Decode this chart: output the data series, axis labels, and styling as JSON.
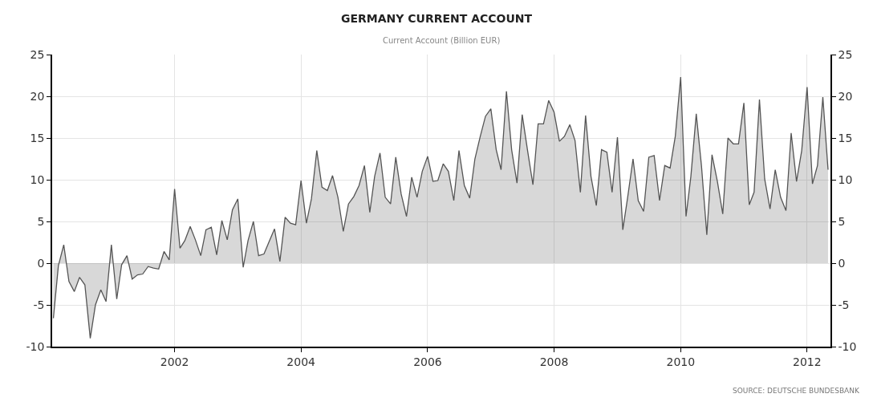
{
  "chart_data": {
    "type": "area",
    "title": "GERMANY CURRENT ACCOUNT",
    "subtitle": "Current Account (Billion EUR)",
    "annotations": [
      "SOURCE: DEUTSCHE BUNDESBANK"
    ],
    "x": [
      "2000-02",
      "2000-03",
      "2000-04",
      "2000-05",
      "2000-06",
      "2000-07",
      "2000-08",
      "2000-09",
      "2000-10",
      "2000-11",
      "2000-12",
      "2001-01",
      "2001-02",
      "2001-03",
      "2001-04",
      "2001-05",
      "2001-06",
      "2001-07",
      "2001-08",
      "2001-09",
      "2001-10",
      "2001-11",
      "2001-12",
      "2002-01",
      "2002-02",
      "2002-03",
      "2002-04",
      "2002-05",
      "2002-06",
      "2002-07",
      "2002-08",
      "2002-09",
      "2002-10",
      "2002-11",
      "2002-12",
      "2003-01",
      "2003-02",
      "2003-03",
      "2003-04",
      "2003-05",
      "2003-06",
      "2003-07",
      "2003-08",
      "2003-09",
      "2003-10",
      "2003-11",
      "2003-12",
      "2004-01",
      "2004-02",
      "2004-03",
      "2004-04",
      "2004-05",
      "2004-06",
      "2004-07",
      "2004-08",
      "2004-09",
      "2004-10",
      "2004-11",
      "2004-12",
      "2005-01",
      "2005-02",
      "2005-03",
      "2005-04",
      "2005-05",
      "2005-06",
      "2005-07",
      "2005-08",
      "2005-09",
      "2005-10",
      "2005-11",
      "2005-12",
      "2006-01",
      "2006-02",
      "2006-03",
      "2006-04",
      "2006-05",
      "2006-06",
      "2006-07",
      "2006-08",
      "2006-09",
      "2006-10",
      "2006-11",
      "2006-12",
      "2007-01",
      "2007-02",
      "2007-03",
      "2007-04",
      "2007-05",
      "2007-06",
      "2007-07",
      "2007-08",
      "2007-09",
      "2007-10",
      "2007-11",
      "2007-12",
      "2008-01",
      "2008-02",
      "2008-03",
      "2008-04",
      "2008-05",
      "2008-06",
      "2008-07",
      "2008-08",
      "2008-09",
      "2008-10",
      "2008-11",
      "2008-12",
      "2009-01",
      "2009-02",
      "2009-03",
      "2009-04",
      "2009-05",
      "2009-06",
      "2009-07",
      "2009-08",
      "2009-09",
      "2009-10",
      "2009-11",
      "2009-12",
      "2010-01",
      "2010-02",
      "2010-03",
      "2010-04",
      "2010-05",
      "2010-06",
      "2010-07",
      "2010-08",
      "2010-09",
      "2010-10",
      "2010-11",
      "2010-12",
      "2011-01",
      "2011-02",
      "2011-03",
      "2011-04",
      "2011-05",
      "2011-06",
      "2011-07",
      "2011-08",
      "2011-09",
      "2011-10",
      "2011-11",
      "2011-12",
      "2012-01",
      "2012-02",
      "2012-03",
      "2012-04",
      "2012-05"
    ],
    "xlim": [
      "2000-01-25",
      "2012-05-15"
    ],
    "xticks": [
      "2002",
      "2004",
      "2006",
      "2008",
      "2010",
      "2012"
    ],
    "ylim": [
      -10,
      25
    ],
    "yticks": [
      -10,
      -5,
      0,
      5,
      10,
      15,
      20,
      25
    ],
    "y2lim": [
      -10,
      25
    ],
    "y2ticks": [
      -10,
      -5,
      0,
      5,
      10,
      15,
      20,
      25
    ],
    "grid": true,
    "marker": "none",
    "line_style": "solid",
    "series": [
      {
        "color": "#555555",
        "values": [
          -6.6,
          -0.3,
          2.2,
          -2.2,
          -3.4,
          -1.7,
          -2.6,
          -9.0,
          -5.0,
          -3.2,
          -4.6,
          2.2,
          -4.3,
          -0.2,
          0.9,
          -1.9,
          -1.4,
          -1.3,
          -0.4,
          -0.6,
          -0.7,
          1.4,
          0.4,
          8.9,
          1.8,
          2.7,
          4.4,
          2.8,
          0.9,
          4.0,
          4.3,
          1.0,
          5.1,
          2.8,
          6.4,
          7.7,
          -0.5,
          2.7,
          5.0,
          0.9,
          1.1,
          2.6,
          4.1,
          0.2,
          5.5,
          4.8,
          4.6,
          9.9,
          4.8,
          7.7,
          13.5,
          9.1,
          8.7,
          10.5,
          7.9,
          3.8,
          7.1,
          8.0,
          9.3,
          11.7,
          6.1,
          10.4,
          13.2,
          7.9,
          7.1,
          12.7,
          8.3,
          5.6,
          10.3,
          7.9,
          11.0,
          12.8,
          9.8,
          9.9,
          11.9,
          11.0,
          7.5,
          13.5,
          9.3,
          7.8,
          12.5,
          15.2,
          17.6,
          18.5,
          13.6,
          11.2,
          20.6,
          13.6,
          9.6,
          17.8,
          13.5,
          9.4,
          16.7,
          16.7,
          19.5,
          18.1,
          14.6,
          15.2,
          16.6,
          14.7,
          8.5,
          17.7,
          10.4,
          6.9,
          13.6,
          13.3,
          8.5,
          15.1,
          4.0,
          7.9,
          12.5,
          7.5,
          6.2,
          12.7,
          12.9,
          7.5,
          11.7,
          11.4,
          15.2,
          22.3,
          5.6,
          10.4,
          17.9,
          11.7,
          3.4,
          13.0,
          9.8,
          5.9,
          15.0,
          14.3,
          14.3,
          19.2,
          7.0,
          8.5,
          19.6,
          10.1,
          6.5,
          11.2,
          7.9,
          6.3,
          15.6,
          9.8,
          13.5,
          21.1,
          9.5,
          11.7,
          19.9,
          11.2
        ]
      }
    ]
  }
}
